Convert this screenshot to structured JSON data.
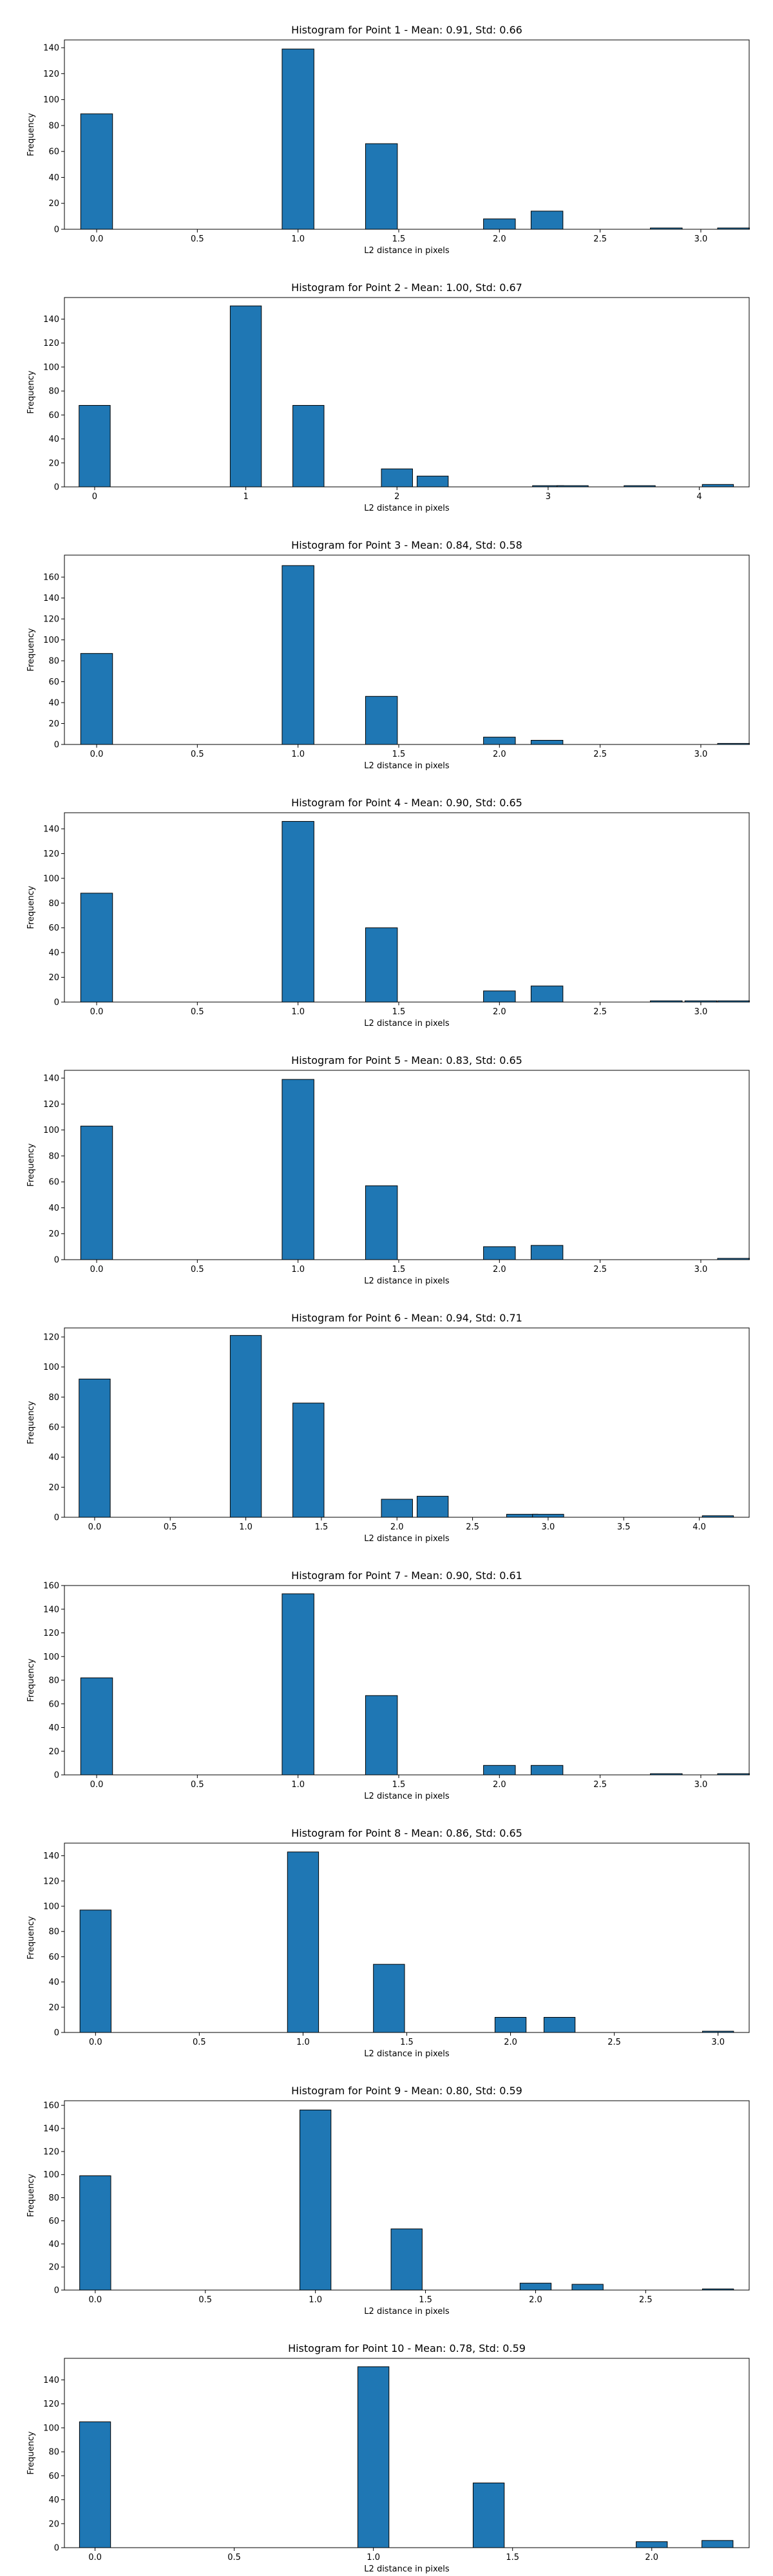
{
  "chart_data": [
    {
      "type": "bar",
      "title": "Histogram for Point 1 - Mean: 0.91, Std: 0.66",
      "xlabel": "L2 distance in pixels",
      "ylabel": "Frequency",
      "xlim": [
        -0.16,
        3.24
      ],
      "ylim": [
        0,
        146
      ],
      "xticks": [
        0.0,
        0.5,
        1.0,
        1.5,
        2.0,
        2.5,
        3.0
      ],
      "xtick_labels": [
        "0.0",
        "0.5",
        "1.0",
        "1.5",
        "2.0",
        "2.5",
        "3.0"
      ],
      "yticks": [
        0,
        20,
        40,
        60,
        80,
        100,
        120,
        140
      ],
      "bin_width": 0.1581,
      "bins": [
        {
          "x": 0.0,
          "value": 89
        },
        {
          "x": 1.0,
          "value": 139
        },
        {
          "x": 1.4142,
          "value": 66
        },
        {
          "x": 2.0,
          "value": 8
        },
        {
          "x": 2.2361,
          "value": 14
        },
        {
          "x": 2.8284,
          "value": 1
        },
        {
          "x": 3.1623,
          "value": 1
        }
      ]
    },
    {
      "type": "bar",
      "title": "Histogram for Point 2 - Mean: 1.00, Std: 0.67",
      "xlabel": "L2 distance in pixels",
      "ylabel": "Frequency",
      "xlim": [
        -0.2,
        4.33
      ],
      "ylim": [
        0,
        158
      ],
      "xticks": [
        0,
        1,
        2,
        3,
        4
      ],
      "xtick_labels": [
        "0",
        "1",
        "2",
        "3",
        "4"
      ],
      "yticks": [
        0,
        20,
        40,
        60,
        80,
        100,
        120,
        140
      ],
      "bin_width": 0.2062,
      "bins": [
        {
          "x": 0.0,
          "value": 68
        },
        {
          "x": 1.0,
          "value": 151
        },
        {
          "x": 1.4142,
          "value": 68
        },
        {
          "x": 2.0,
          "value": 15
        },
        {
          "x": 2.2361,
          "value": 9
        },
        {
          "x": 3.0,
          "value": 1
        },
        {
          "x": 3.1623,
          "value": 1
        },
        {
          "x": 3.6056,
          "value": 1
        },
        {
          "x": 4.1231,
          "value": 2
        }
      ]
    },
    {
      "type": "bar",
      "title": "Histogram for Point 3 - Mean: 0.84, Std: 0.58",
      "xlabel": "L2 distance in pixels",
      "ylabel": "Frequency",
      "xlim": [
        -0.16,
        3.24
      ],
      "ylim": [
        0,
        181
      ],
      "xticks": [
        0.0,
        0.5,
        1.0,
        1.5,
        2.0,
        2.5,
        3.0
      ],
      "xtick_labels": [
        "0.0",
        "0.5",
        "1.0",
        "1.5",
        "2.0",
        "2.5",
        "3.0"
      ],
      "yticks": [
        0,
        20,
        40,
        60,
        80,
        100,
        120,
        140,
        160
      ],
      "bin_width": 0.1581,
      "bins": [
        {
          "x": 0.0,
          "value": 87
        },
        {
          "x": 1.0,
          "value": 171
        },
        {
          "x": 1.4142,
          "value": 46
        },
        {
          "x": 2.0,
          "value": 7
        },
        {
          "x": 2.2361,
          "value": 4
        },
        {
          "x": 3.1623,
          "value": 1
        }
      ]
    },
    {
      "type": "bar",
      "title": "Histogram for Point 4 - Mean: 0.90, Std: 0.65",
      "xlabel": "L2 distance in pixels",
      "ylabel": "Frequency",
      "xlim": [
        -0.16,
        3.24
      ],
      "ylim": [
        0,
        153
      ],
      "xticks": [
        0.0,
        0.5,
        1.0,
        1.5,
        2.0,
        2.5,
        3.0
      ],
      "xtick_labels": [
        "0.0",
        "0.5",
        "1.0",
        "1.5",
        "2.0",
        "2.5",
        "3.0"
      ],
      "yticks": [
        0,
        20,
        40,
        60,
        80,
        100,
        120,
        140
      ],
      "bin_width": 0.1581,
      "bins": [
        {
          "x": 0.0,
          "value": 88
        },
        {
          "x": 1.0,
          "value": 146
        },
        {
          "x": 1.4142,
          "value": 60
        },
        {
          "x": 2.0,
          "value": 9
        },
        {
          "x": 2.2361,
          "value": 13
        },
        {
          "x": 2.8284,
          "value": 1
        },
        {
          "x": 3.0,
          "value": 1
        },
        {
          "x": 3.1623,
          "value": 1
        }
      ]
    },
    {
      "type": "bar",
      "title": "Histogram for Point 5 - Mean: 0.83, Std: 0.65",
      "xlabel": "L2 distance in pixels",
      "ylabel": "Frequency",
      "xlim": [
        -0.16,
        3.24
      ],
      "ylim": [
        0,
        146
      ],
      "xticks": [
        0.0,
        0.5,
        1.0,
        1.5,
        2.0,
        2.5,
        3.0
      ],
      "xtick_labels": [
        "0.0",
        "0.5",
        "1.0",
        "1.5",
        "2.0",
        "2.5",
        "3.0"
      ],
      "yticks": [
        0,
        20,
        40,
        60,
        80,
        100,
        120,
        140
      ],
      "bin_width": 0.1581,
      "bins": [
        {
          "x": 0.0,
          "value": 103
        },
        {
          "x": 1.0,
          "value": 139
        },
        {
          "x": 1.4142,
          "value": 57
        },
        {
          "x": 2.0,
          "value": 10
        },
        {
          "x": 2.2361,
          "value": 11
        },
        {
          "x": 3.1623,
          "value": 1
        }
      ]
    },
    {
      "type": "bar",
      "title": "Histogram for Point 6 - Mean: 0.94, Std: 0.71",
      "xlabel": "L2 distance in pixels",
      "ylabel": "Frequency",
      "xlim": [
        -0.2,
        4.33
      ],
      "ylim": [
        0,
        126
      ],
      "xticks": [
        0.0,
        0.5,
        1.0,
        1.5,
        2.0,
        2.5,
        3.0,
        3.5,
        4.0
      ],
      "xtick_labels": [
        "0.0",
        "0.5",
        "1.0",
        "1.5",
        "2.0",
        "2.5",
        "3.0",
        "3.5",
        "4.0"
      ],
      "yticks": [
        0,
        20,
        40,
        60,
        80,
        100,
        120
      ],
      "bin_width": 0.2062,
      "bins": [
        {
          "x": 0.0,
          "value": 92
        },
        {
          "x": 1.0,
          "value": 121
        },
        {
          "x": 1.4142,
          "value": 76
        },
        {
          "x": 2.0,
          "value": 12
        },
        {
          "x": 2.2361,
          "value": 14
        },
        {
          "x": 2.8284,
          "value": 2
        },
        {
          "x": 3.0,
          "value": 2
        },
        {
          "x": 4.1231,
          "value": 1
        }
      ]
    },
    {
      "type": "bar",
      "title": "Histogram for Point 7 - Mean: 0.90, Std: 0.61",
      "xlabel": "L2 distance in pixels",
      "ylabel": "Frequency",
      "xlim": [
        -0.16,
        3.24
      ],
      "ylim": [
        0,
        160
      ],
      "xticks": [
        0.0,
        0.5,
        1.0,
        1.5,
        2.0,
        2.5,
        3.0
      ],
      "xtick_labels": [
        "0.0",
        "0.5",
        "1.0",
        "1.5",
        "2.0",
        "2.5",
        "3.0"
      ],
      "yticks": [
        0,
        20,
        40,
        60,
        80,
        100,
        120,
        140,
        160
      ],
      "bin_width": 0.1581,
      "bins": [
        {
          "x": 0.0,
          "value": 82
        },
        {
          "x": 1.0,
          "value": 153
        },
        {
          "x": 1.4142,
          "value": 67
        },
        {
          "x": 2.0,
          "value": 8
        },
        {
          "x": 2.2361,
          "value": 8
        },
        {
          "x": 2.8284,
          "value": 1
        },
        {
          "x": 3.1623,
          "value": 1
        }
      ]
    },
    {
      "type": "bar",
      "title": "Histogram for Point 8 - Mean: 0.86, Std: 0.65",
      "xlabel": "L2 distance in pixels",
      "ylabel": "Frequency",
      "xlim": [
        -0.15,
        3.15
      ],
      "ylim": [
        0,
        150
      ],
      "xticks": [
        0.0,
        0.5,
        1.0,
        1.5,
        2.0,
        2.5,
        3.0
      ],
      "xtick_labels": [
        "0.0",
        "0.5",
        "1.0",
        "1.5",
        "2.0",
        "2.5",
        "3.0"
      ],
      "yticks": [
        0,
        20,
        40,
        60,
        80,
        100,
        120,
        140
      ],
      "bin_width": 0.15,
      "bins": [
        {
          "x": 0.0,
          "value": 97
        },
        {
          "x": 1.0,
          "value": 143
        },
        {
          "x": 1.4142,
          "value": 54
        },
        {
          "x": 2.0,
          "value": 12
        },
        {
          "x": 2.2361,
          "value": 12
        },
        {
          "x": 3.0,
          "value": 1
        }
      ]
    },
    {
      "type": "bar",
      "title": "Histogram for Point 9 - Mean: 0.80, Std: 0.59",
      "xlabel": "L2 distance in pixels",
      "ylabel": "Frequency",
      "xlim": [
        -0.14,
        2.97
      ],
      "ylim": [
        0,
        164
      ],
      "xticks": [
        0.0,
        0.5,
        1.0,
        1.5,
        2.0,
        2.5
      ],
      "xtick_labels": [
        "0.0",
        "0.5",
        "1.0",
        "1.5",
        "2.0",
        "2.5"
      ],
      "yticks": [
        0,
        20,
        40,
        60,
        80,
        100,
        120,
        140,
        160
      ],
      "bin_width": 0.1414,
      "bins": [
        {
          "x": 0.0,
          "value": 99
        },
        {
          "x": 1.0,
          "value": 156
        },
        {
          "x": 1.4142,
          "value": 53
        },
        {
          "x": 2.0,
          "value": 6
        },
        {
          "x": 2.2361,
          "value": 5
        },
        {
          "x": 2.8284,
          "value": 1
        }
      ]
    },
    {
      "type": "bar",
      "title": "Histogram for Point 10 - Mean: 0.78, Std: 0.59",
      "xlabel": "L2 distance in pixels",
      "ylabel": "Frequency",
      "xlim": [
        -0.11,
        2.35
      ],
      "ylim": [
        0,
        158
      ],
      "xticks": [
        0.0,
        0.5,
        1.0,
        1.5,
        2.0
      ],
      "xtick_labels": [
        "0.0",
        "0.5",
        "1.0",
        "1.5",
        "2.0"
      ],
      "yticks": [
        0,
        20,
        40,
        60,
        80,
        100,
        120,
        140
      ],
      "bin_width": 0.1118,
      "bins": [
        {
          "x": 0.0,
          "value": 105
        },
        {
          "x": 1.0,
          "value": 151
        },
        {
          "x": 1.4142,
          "value": 54
        },
        {
          "x": 2.0,
          "value": 5
        },
        {
          "x": 2.2361,
          "value": 6
        }
      ]
    }
  ],
  "colors": {
    "bar_fill": "#1f77b4",
    "bar_edge": "#000000",
    "axes": "#000000",
    "text": "#000000",
    "background": "#ffffff"
  }
}
